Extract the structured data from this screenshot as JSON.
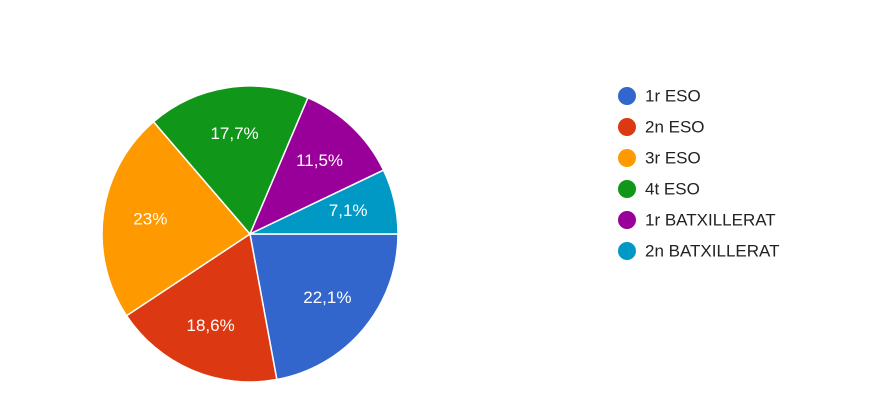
{
  "chart_data": {
    "type": "pie",
    "categories": [
      "1r ESO",
      "2n ESO",
      "3r ESO",
      "4t ESO",
      "1r BATXILLERAT",
      "2n BATXILLERAT"
    ],
    "values": [
      22.1,
      18.6,
      23,
      17.7,
      11.5,
      7.1
    ],
    "value_labels": [
      "22,1%",
      "18,6%",
      "23%",
      "17,7%",
      "11,5%",
      "7,1%"
    ],
    "colors": [
      "#3366cc",
      "#dc3912",
      "#ff9900",
      "#109618",
      "#990099",
      "#0099c6"
    ],
    "legend": "right"
  }
}
